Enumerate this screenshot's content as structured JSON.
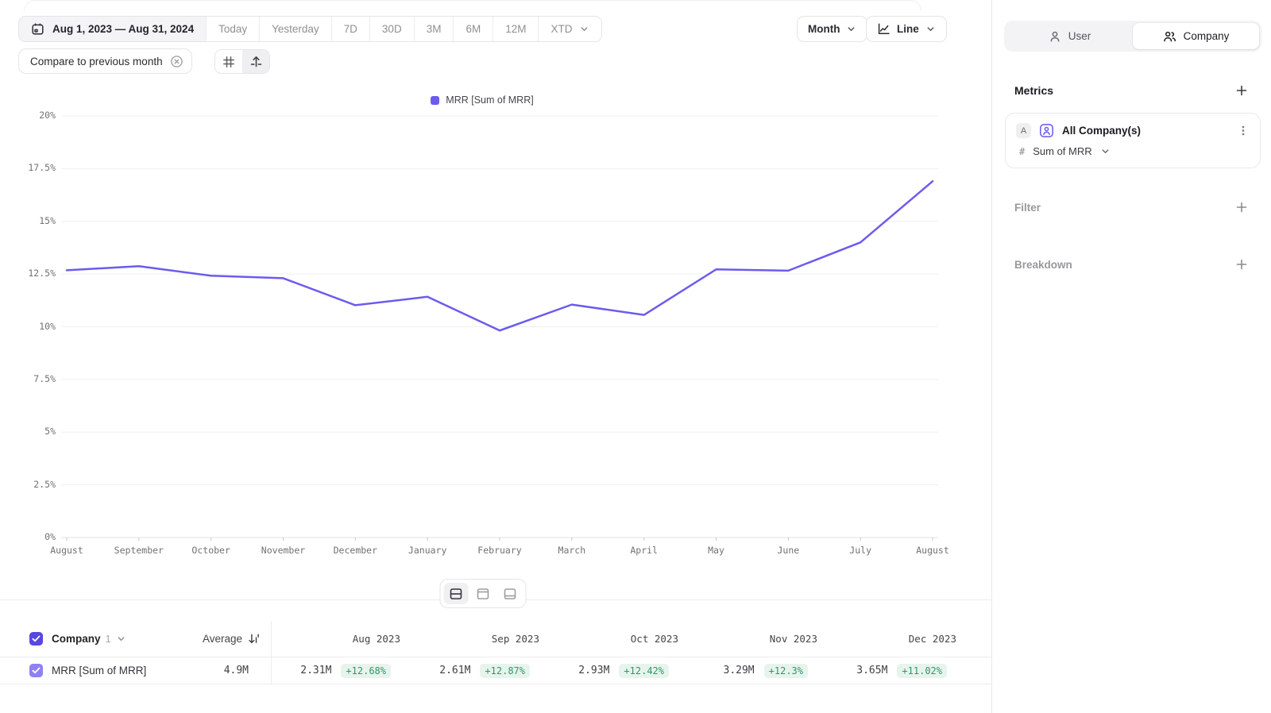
{
  "toolbar": {
    "date_range": "Aug 1, 2023 — Aug 31, 2024",
    "presets": [
      "Today",
      "Yesterday",
      "7D",
      "30D",
      "3M",
      "6M",
      "12M"
    ],
    "xtd": "XTD",
    "granularity": "Month",
    "chart_type": "Line",
    "compare": "Compare to previous month"
  },
  "chart_data": {
    "type": "line",
    "title": "",
    "x": [
      "August",
      "September",
      "October",
      "November",
      "December",
      "January",
      "February",
      "March",
      "April",
      "May",
      "June",
      "July",
      "August"
    ],
    "series": [
      {
        "name": "MRR [Sum of MRR]",
        "values": [
          12.68,
          12.87,
          12.42,
          12.3,
          11.02,
          11.42,
          9.82,
          11.05,
          10.56,
          12.72,
          12.66,
          14.0,
          16.9
        ],
        "color": "#6C5BEE"
      }
    ],
    "ylim": [
      0,
      20
    ],
    "yticks": [
      "20%",
      "17.5%",
      "15%",
      "12.5%",
      "10%",
      "7.5%",
      "5%",
      "2.5%",
      "0%"
    ],
    "xlabel": "",
    "ylabel": "",
    "grid": true,
    "legend_position": "top-center"
  },
  "table": {
    "group_label": "Company",
    "group_count": "1",
    "average_label": "Average",
    "columns": [
      "Aug 2023",
      "Sep 2023",
      "Oct 2023",
      "Nov 2023",
      "Dec 2023"
    ],
    "rows": [
      {
        "name": "MRR [Sum of MRR]",
        "average": "4.9M",
        "values": [
          {
            "value": "2.31M",
            "delta": "+12.68%"
          },
          {
            "value": "2.61M",
            "delta": "+12.87%"
          },
          {
            "value": "2.93M",
            "delta": "+12.42%"
          },
          {
            "value": "3.29M",
            "delta": "+12.3%"
          },
          {
            "value": "3.65M",
            "delta": "+11.02%"
          }
        ]
      }
    ]
  },
  "sidebar": {
    "scope_toggle": {
      "options": [
        {
          "label": "User"
        },
        {
          "label": "Company"
        }
      ],
      "selected": "Company"
    },
    "metrics": {
      "title": "Metrics",
      "card": {
        "series_badge": "A",
        "entity": "All Company(s)",
        "metric_prefix": "#",
        "metric": "Sum of MRR"
      }
    },
    "filter": {
      "label": "Filter"
    },
    "breakdown": {
      "label": "Breakdown"
    }
  },
  "icons": {
    "calendar": "calendar glyph",
    "chevron_down": "⌄",
    "close_circle": "⊗",
    "grid": "#",
    "arrow_up_from_line": "↥",
    "line_chart": "zigzag",
    "user": "person",
    "company": "two people",
    "entity_card": "person in rounded square",
    "kebab": "⋮",
    "plus": "+",
    "hash": "#",
    "sort": "↓ with bars",
    "layout_split": "rect middle divider",
    "layout_top": "rect top divider",
    "layout_bottom": "rect bottom divider",
    "check": "✓"
  },
  "colors": {
    "accent": "#6C5BEE",
    "accent_strong": "#5747E2",
    "accent_soft": "#8F80F3",
    "positive": "#2F9868",
    "positive_bg": "#E7F4ED",
    "grid_line": "#EFEFF2",
    "axis_line": "#E2E2E6"
  }
}
